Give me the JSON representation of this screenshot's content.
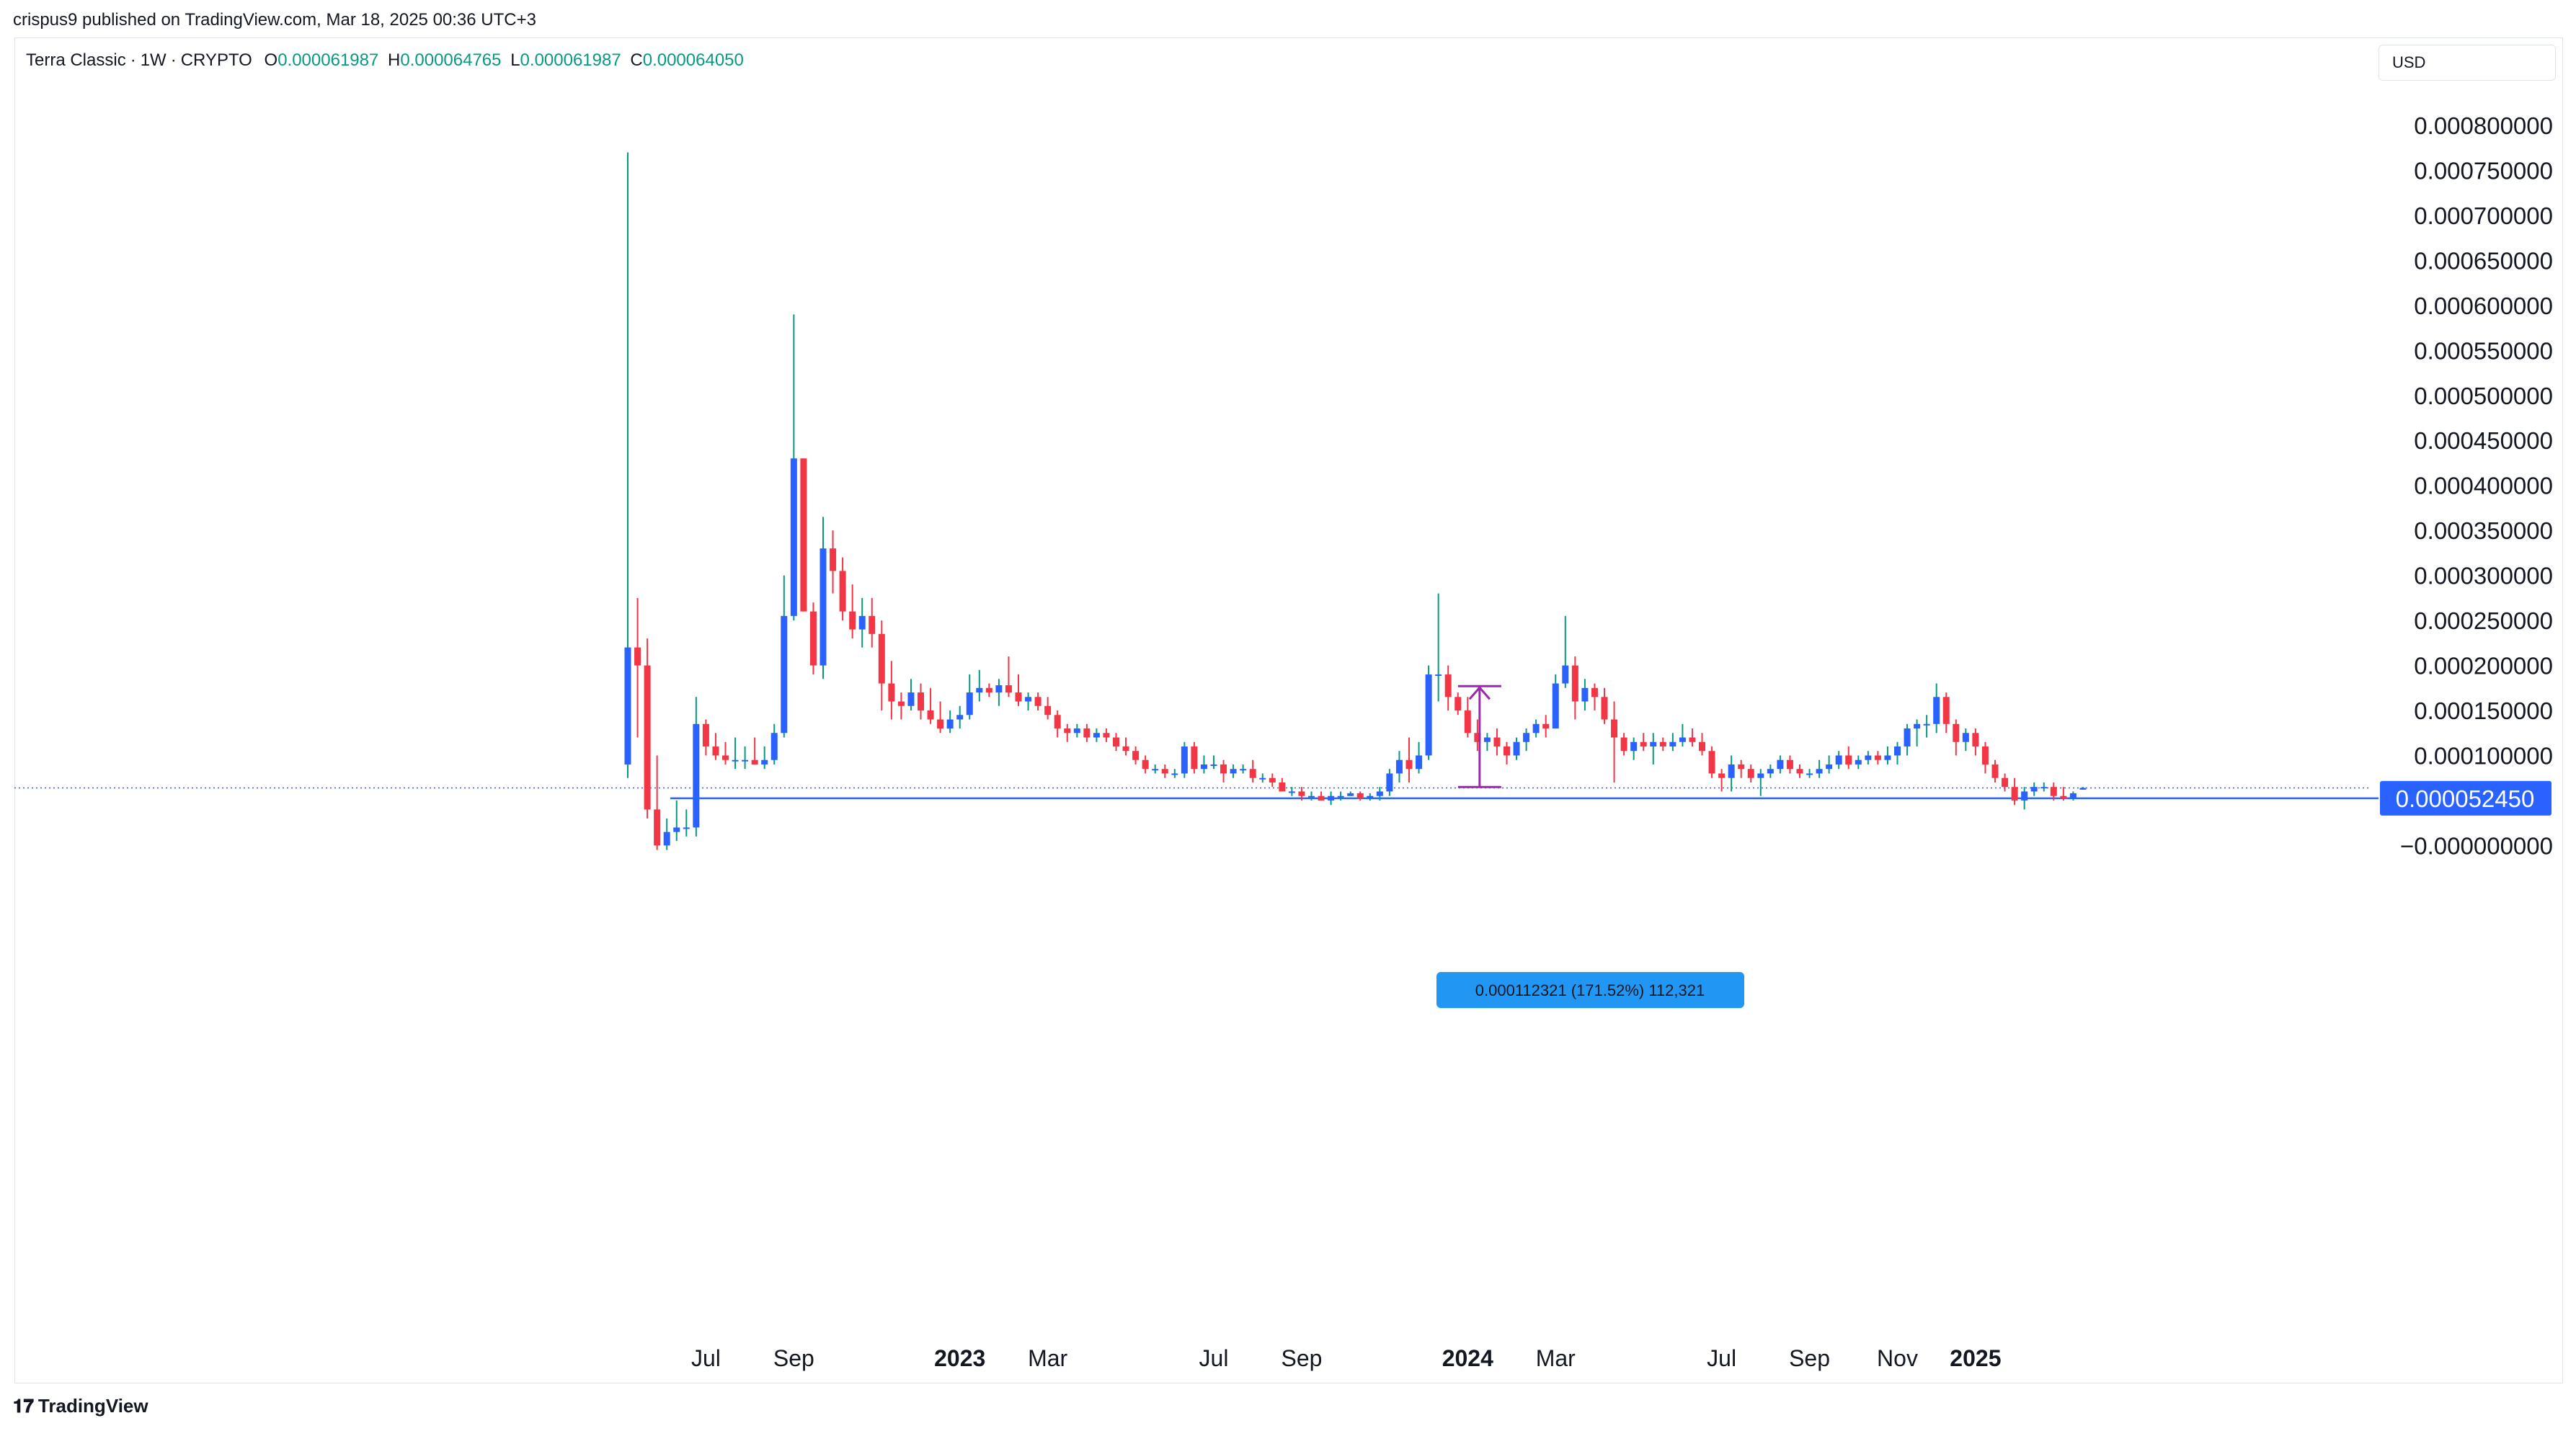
{
  "header": {
    "published_by": "crispus9 published on TradingView.com, Mar 18, 2025 00:36 UTC+3"
  },
  "legend": {
    "symbol": "Terra Classic",
    "interval": "1W",
    "source": "CRYPTO",
    "open_label": "O",
    "open_value": "0.000061987",
    "high_label": "H",
    "high_value": "0.000064765",
    "low_label": "L",
    "low_value": "0.000061987",
    "close_label": "C",
    "close_value": "0.000064050"
  },
  "currency": "USD",
  "footer": {
    "brand": "TradingView",
    "brand_icon": "tradingview-logo-icon"
  },
  "colors": {
    "up": "#2962ff",
    "down": "#f23645",
    "wick_up": "#089981",
    "wick_down": "#f23645",
    "measure": "#9c27b0",
    "label_bg": "#2196f3",
    "line": "#2962ff"
  },
  "chart_data": {
    "type": "candlestick",
    "title": "Terra Classic · 1W · CRYPTO",
    "ylim": [
      -1e-05,
      0.00081
    ],
    "y_ticks": [
      {
        "value": 0.0008,
        "label": "0.000800000"
      },
      {
        "value": 0.00075,
        "label": "0.000750000"
      },
      {
        "value": 0.0007,
        "label": "0.000700000"
      },
      {
        "value": 0.00065,
        "label": "0.000650000"
      },
      {
        "value": 0.0006,
        "label": "0.000600000"
      },
      {
        "value": 0.00055,
        "label": "0.000550000"
      },
      {
        "value": 0.0005,
        "label": "0.000500000"
      },
      {
        "value": 0.00045,
        "label": "0.000450000"
      },
      {
        "value": 0.0004,
        "label": "0.000400000"
      },
      {
        "value": 0.00035,
        "label": "0.000350000"
      },
      {
        "value": 0.0003,
        "label": "0.000300000"
      },
      {
        "value": 0.00025,
        "label": "0.000250000"
      },
      {
        "value": 0.0002,
        "label": "0.000200000"
      },
      {
        "value": 0.00015,
        "label": "0.000150000"
      },
      {
        "value": 0.0001,
        "label": "0.000100000"
      },
      {
        "value": 0.0,
        "label": "−0.000000000"
      }
    ],
    "x_ticks": [
      {
        "index": 8,
        "label": "Jul",
        "bold": false
      },
      {
        "index": 17,
        "label": "Sep",
        "bold": false
      },
      {
        "index": 34,
        "label": "2023",
        "bold": true
      },
      {
        "index": 43,
        "label": "Mar",
        "bold": false
      },
      {
        "index": 60,
        "label": "Jul",
        "bold": false
      },
      {
        "index": 69,
        "label": "Sep",
        "bold": false
      },
      {
        "index": 86,
        "label": "2024",
        "bold": true
      },
      {
        "index": 95,
        "label": "Mar",
        "bold": false
      },
      {
        "index": 112,
        "label": "Jul",
        "bold": false
      },
      {
        "index": 121,
        "label": "Sep",
        "bold": false
      },
      {
        "index": 130,
        "label": "Nov",
        "bold": false
      },
      {
        "index": 138,
        "label": "2025",
        "bold": true
      }
    ],
    "ohlc": [
      [
        9e-05,
        0.00077,
        7.5e-05,
        0.00022
      ],
      [
        0.00022,
        0.000275,
        0.00012,
        0.0002
      ],
      [
        0.0002,
        0.00023,
        3e-05,
        4e-05
      ],
      [
        4e-05,
        0.0001,
        -5e-06,
        0.0
      ],
      [
        0.0,
        3e-05,
        -5e-06,
        1.5e-05
      ],
      [
        1.5e-05,
        5e-05,
        5e-06,
        2e-05
      ],
      [
        2e-05,
        4e-05,
        1e-05,
        2e-05
      ],
      [
        2e-05,
        0.000165,
        1e-05,
        0.000135
      ],
      [
        0.000135,
        0.00014,
        0.0001,
        0.00011
      ],
      [
        0.00011,
        0.000125,
        9.5e-05,
        0.0001
      ],
      [
        0.0001,
        0.000115,
        9e-05,
        9.5e-05
      ],
      [
        9.5e-05,
        0.00012,
        8.5e-05,
        9.5e-05
      ],
      [
        9.5e-05,
        0.00011,
        8.5e-05,
        9.5e-05
      ],
      [
        9.5e-05,
        0.00012,
        9e-05,
        9e-05
      ],
      [
        9e-05,
        0.00011,
        8.5e-05,
        9.5e-05
      ],
      [
        9.5e-05,
        0.000135,
        9e-05,
        0.000125
      ],
      [
        0.000125,
        0.0003,
        0.00012,
        0.000255
      ],
      [
        0.000255,
        0.00059,
        0.00025,
        0.00043
      ],
      [
        0.00043,
        0.00043,
        0.00026,
        0.00026
      ],
      [
        0.00026,
        0.00027,
        0.00019,
        0.0002
      ],
      [
        0.0002,
        0.000365,
        0.000185,
        0.00033
      ],
      [
        0.00033,
        0.00035,
        0.00028,
        0.000305
      ],
      [
        0.000305,
        0.00032,
        0.00025,
        0.00026
      ],
      [
        0.00026,
        0.00029,
        0.00023,
        0.00024
      ],
      [
        0.00024,
        0.000275,
        0.00022,
        0.000255
      ],
      [
        0.000255,
        0.000275,
        0.00022,
        0.000235
      ],
      [
        0.000235,
        0.00025,
        0.00015,
        0.00018
      ],
      [
        0.00018,
        0.000205,
        0.00014,
        0.00016
      ],
      [
        0.00016,
        0.00017,
        0.00014,
        0.000155
      ],
      [
        0.000155,
        0.000185,
        0.00015,
        0.00017
      ],
      [
        0.00017,
        0.00018,
        0.00014,
        0.00015
      ],
      [
        0.00015,
        0.000175,
        0.000135,
        0.00014
      ],
      [
        0.00014,
        0.00016,
        0.000125,
        0.00013
      ],
      [
        0.00013,
        0.00015,
        0.000125,
        0.00014
      ],
      [
        0.00014,
        0.000155,
        0.00013,
        0.000145
      ],
      [
        0.000145,
        0.00019,
        0.00014,
        0.00017
      ],
      [
        0.00017,
        0.000195,
        0.00016,
        0.000175
      ],
      [
        0.000175,
        0.00018,
        0.000165,
        0.00017
      ],
      [
        0.00017,
        0.000185,
        0.000155,
        0.000178
      ],
      [
        0.000178,
        0.00021,
        0.000165,
        0.00017
      ],
      [
        0.00017,
        0.00019,
        0.000155,
        0.00016
      ],
      [
        0.00016,
        0.00017,
        0.00015,
        0.000165
      ],
      [
        0.000165,
        0.00017,
        0.00015,
        0.000155
      ],
      [
        0.000155,
        0.000165,
        0.00014,
        0.000145
      ],
      [
        0.000145,
        0.00015,
        0.00012,
        0.00013
      ],
      [
        0.00013,
        0.000135,
        0.000115,
        0.000125
      ],
      [
        0.000125,
        0.000135,
        0.00012,
        0.00013
      ],
      [
        0.00013,
        0.000135,
        0.000115,
        0.00012
      ],
      [
        0.00012,
        0.00013,
        0.000115,
        0.000125
      ],
      [
        0.000125,
        0.00013,
        0.000115,
        0.00012
      ],
      [
        0.00012,
        0.000125,
        0.000105,
        0.00011
      ],
      [
        0.00011,
        0.00012,
        0.0001,
        0.000105
      ],
      [
        0.000105,
        0.00011,
        9e-05,
        9.5e-05
      ],
      [
        9.5e-05,
        0.0001,
        8e-05,
        8.5e-05
      ],
      [
        8.5e-05,
        9e-05,
        8e-05,
        8.5e-05
      ],
      [
        8.5e-05,
        9e-05,
        7.5e-05,
        8e-05
      ],
      [
        8e-05,
        8.5e-05,
        7.5e-05,
        8e-05
      ],
      [
        8e-05,
        0.000115,
        7.5e-05,
        0.00011
      ],
      [
        0.00011,
        0.000115,
        8e-05,
        8.5e-05
      ],
      [
        8.5e-05,
        0.0001,
        8e-05,
        9e-05
      ],
      [
        9e-05,
        0.0001,
        8.5e-05,
        9e-05
      ],
      [
        9e-05,
        9.5e-05,
        7e-05,
        8e-05
      ],
      [
        8e-05,
        9e-05,
        7.5e-05,
        8.5e-05
      ],
      [
        8.5e-05,
        9e-05,
        8e-05,
        8.5e-05
      ],
      [
        8.5e-05,
        9.5e-05,
        7e-05,
        7.5e-05
      ],
      [
        7.5e-05,
        8e-05,
        7e-05,
        7.5e-05
      ],
      [
        7.5e-05,
        8e-05,
        6.5e-05,
        7e-05
      ],
      [
        7e-05,
        7.5e-05,
        6e-05,
        6e-05
      ],
      [
        6e-05,
        6.5e-05,
        5.5e-05,
        6e-05
      ],
      [
        6e-05,
        6.5e-05,
        5e-05,
        5.5e-05
      ],
      [
        5.5e-05,
        6e-05,
        5e-05,
        5.5e-05
      ],
      [
        5.5e-05,
        6e-05,
        5e-05,
        5e-05
      ],
      [
        5e-05,
        6e-05,
        4.5e-05,
        5.5e-05
      ],
      [
        5.5e-05,
        6e-05,
        5e-05,
        5.5e-05
      ],
      [
        5.5e-05,
        6e-05,
        5.5e-05,
        5.8e-05
      ],
      [
        5.8e-05,
        6e-05,
        5e-05,
        5.2e-05
      ],
      [
        5.2e-05,
        5.8e-05,
        5e-05,
        5.5e-05
      ],
      [
        5.5e-05,
        6.5e-05,
        5e-05,
        6e-05
      ],
      [
        6e-05,
        8.5e-05,
        5.5e-05,
        8e-05
      ],
      [
        8e-05,
        0.000105,
        7e-05,
        9.5e-05
      ],
      [
        9.5e-05,
        0.00012,
        7e-05,
        8.5e-05
      ],
      [
        8.5e-05,
        0.000115,
        8e-05,
        0.0001
      ],
      [
        0.0001,
        0.0002,
        9.5e-05,
        0.00019
      ],
      [
        0.00019,
        0.00028,
        0.00016,
        0.00019
      ],
      [
        0.00019,
        0.0002,
        0.00015,
        0.000165
      ],
      [
        0.000165,
        0.00017,
        0.000145,
        0.00015
      ],
      [
        0.00015,
        0.000165,
        0.00012,
        0.000125
      ],
      [
        0.000125,
        0.00014,
        0.000105,
        0.000115
      ],
      [
        0.000115,
        0.000125,
        0.000105,
        0.00012
      ],
      [
        0.00012,
        0.00013,
        0.0001,
        0.00011
      ],
      [
        0.00011,
        0.000115,
        9e-05,
        0.0001
      ],
      [
        0.0001,
        0.00012,
        9.5e-05,
        0.000115
      ],
      [
        0.000115,
        0.00013,
        0.000105,
        0.000125
      ],
      [
        0.000125,
        0.00014,
        0.00012,
        0.000135
      ],
      [
        0.000135,
        0.000145,
        0.00012,
        0.00013
      ],
      [
        0.00013,
        0.00019,
        0.00013,
        0.00018
      ],
      [
        0.00018,
        0.000255,
        0.000175,
        0.0002
      ],
      [
        0.0002,
        0.00021,
        0.00014,
        0.00016
      ],
      [
        0.00016,
        0.000185,
        0.00015,
        0.000175
      ],
      [
        0.000175,
        0.00018,
        0.00015,
        0.000165
      ],
      [
        0.000165,
        0.000175,
        0.000135,
        0.00014
      ],
      [
        0.00014,
        0.00016,
        7e-05,
        0.00012
      ],
      [
        0.00012,
        0.000125,
        0.0001,
        0.000105
      ],
      [
        0.000105,
        0.00012,
        9.5e-05,
        0.000115
      ],
      [
        0.000115,
        0.000125,
        0.000105,
        0.00011
      ],
      [
        0.00011,
        0.000125,
        9e-05,
        0.000115
      ],
      [
        0.000115,
        0.00012,
        0.000105,
        0.00011
      ],
      [
        0.00011,
        0.000125,
        0.000105,
        0.000115
      ],
      [
        0.000115,
        0.000135,
        0.00011,
        0.00012
      ],
      [
        0.00012,
        0.00013,
        0.00011,
        0.000115
      ],
      [
        0.000115,
        0.000125,
        0.0001,
        0.000105
      ],
      [
        0.000105,
        0.00011,
        7.5e-05,
        8e-05
      ],
      [
        8e-05,
        8.5e-05,
        6e-05,
        7.5e-05
      ],
      [
        7.5e-05,
        0.0001,
        6e-05,
        9e-05
      ],
      [
        9e-05,
        9.5e-05,
        7.5e-05,
        8.5e-05
      ],
      [
        8.5e-05,
        9e-05,
        7e-05,
        7.5e-05
      ],
      [
        7.5e-05,
        8.5e-05,
        5.5e-05,
        8e-05
      ],
      [
        8e-05,
        9e-05,
        7.5e-05,
        8.5e-05
      ],
      [
        8.5e-05,
        0.0001,
        8e-05,
        9.5e-05
      ],
      [
        9.5e-05,
        0.0001,
        8e-05,
        8.5e-05
      ],
      [
        8.5e-05,
        9e-05,
        7.5e-05,
        8e-05
      ],
      [
        8e-05,
        8.5e-05,
        7.5e-05,
        8e-05
      ],
      [
        8e-05,
        9.5e-05,
        7.5e-05,
        8.5e-05
      ],
      [
        8.5e-05,
        0.0001,
        8e-05,
        9e-05
      ],
      [
        9e-05,
        0.000105,
        8.5e-05,
        0.0001
      ],
      [
        0.0001,
        0.00011,
        8.5e-05,
        9e-05
      ],
      [
        9e-05,
        0.0001,
        8.5e-05,
        9.5e-05
      ],
      [
        9.5e-05,
        0.000105,
        9e-05,
        0.0001
      ],
      [
        0.0001,
        0.000105,
        9e-05,
        9.5e-05
      ],
      [
        9.5e-05,
        0.00011,
        9e-05,
        0.0001
      ],
      [
        0.0001,
        0.000115,
        9e-05,
        0.00011
      ],
      [
        0.00011,
        0.000135,
        0.0001,
        0.00013
      ],
      [
        0.00013,
        0.00014,
        0.00011,
        0.000135
      ],
      [
        0.000135,
        0.000145,
        0.00012,
        0.000135
      ],
      [
        0.000135,
        0.00018,
        0.000125,
        0.000165
      ],
      [
        0.000165,
        0.00017,
        0.000125,
        0.000135
      ],
      [
        0.000135,
        0.00014,
        0.0001,
        0.000115
      ],
      [
        0.000115,
        0.00013,
        0.000105,
        0.000125
      ],
      [
        0.000125,
        0.00013,
        0.0001,
        0.00011
      ],
      [
        0.00011,
        0.000115,
        8e-05,
        9e-05
      ],
      [
        9e-05,
        9.5e-05,
        7e-05,
        7.5e-05
      ],
      [
        7.5e-05,
        8e-05,
        6e-05,
        6.5e-05
      ],
      [
        6.5e-05,
        7.5e-05,
        4.5e-05,
        5e-05
      ],
      [
        5e-05,
        6.5e-05,
        4e-05,
        6e-05
      ],
      [
        6e-05,
        7e-05,
        5.5e-05,
        6.5e-05
      ],
      [
        6.5e-05,
        7e-05,
        6e-05,
        6.5e-05
      ],
      [
        6.5e-05,
        7e-05,
        5e-05,
        5.5e-05
      ],
      [
        5.5e-05,
        6.5e-05,
        5e-05,
        5.2e-05
      ],
      [
        5.2e-05,
        6e-05,
        5e-05,
        5.8e-05
      ],
      [
        6.2e-05,
        6.5e-05,
        6.2e-05,
        6.4e-05
      ]
    ],
    "current_price": {
      "value": 6.4e-05,
      "style": "dotted"
    },
    "horizontal_line": {
      "value": 5.245e-05,
      "label": "0.000052450"
    },
    "measure": {
      "from_index": 87,
      "from_price": 6.5e-05,
      "to_price": 0.000177,
      "label": "0.000112321 (171.52%) 112,321"
    }
  }
}
